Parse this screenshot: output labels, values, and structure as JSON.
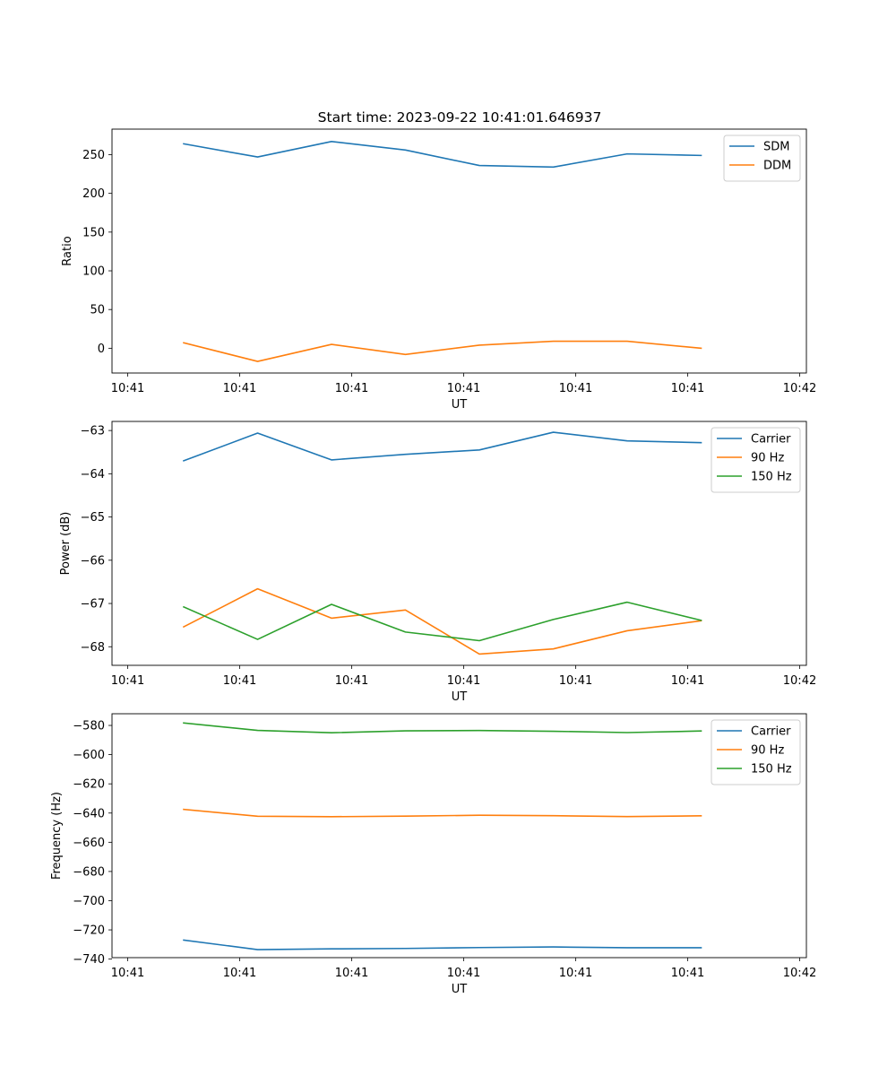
{
  "figure_title": "Start time: 2023-09-22 10:41:01.646937",
  "chart_data": [
    {
      "type": "line",
      "xlabel": "UT",
      "ylabel": "Ratio",
      "x_tick_labels": [
        "10:41",
        "10:41",
        "10:41",
        "10:41",
        "10:41",
        "10:41",
        "10:42"
      ],
      "yticks": [
        0,
        50,
        100,
        150,
        200,
        250
      ],
      "ylim": [
        -32,
        283
      ],
      "x": [
        0.5,
        1.16,
        1.82,
        2.48,
        3.14,
        3.8,
        4.46,
        5.12
      ],
      "xlim": [
        -0.14,
        6.06
      ],
      "xticks": [
        0,
        1,
        2,
        3,
        4,
        5,
        6
      ],
      "legend_position": "top-right",
      "series": [
        {
          "name": "SDM",
          "color": "#1f77b4",
          "values": [
            264,
            247,
            267,
            256,
            236,
            234,
            251,
            249
          ]
        },
        {
          "name": "DDM",
          "color": "#ff7f0e",
          "values": [
            7,
            -17,
            5,
            -8,
            4,
            9,
            9,
            0
          ]
        }
      ]
    },
    {
      "type": "line",
      "xlabel": "UT",
      "ylabel": "Power (dB)",
      "x_tick_labels": [
        "10:41",
        "10:41",
        "10:41",
        "10:41",
        "10:41",
        "10:41",
        "10:42"
      ],
      "yticks": [
        -68,
        -67,
        -66,
        -65,
        -64,
        -63
      ],
      "ylim": [
        -68.43,
        -62.79
      ],
      "x": [
        0.5,
        1.16,
        1.82,
        2.48,
        3.14,
        3.8,
        4.46,
        5.12
      ],
      "xlim": [
        -0.14,
        6.06
      ],
      "xticks": [
        0,
        1,
        2,
        3,
        4,
        5,
        6
      ],
      "legend_position": "top-right",
      "series": [
        {
          "name": "Carrier",
          "color": "#1f77b4",
          "values": [
            -63.7,
            -63.06,
            -63.68,
            -63.55,
            -63.45,
            -63.04,
            -63.24,
            -63.28
          ]
        },
        {
          "name": "90 Hz",
          "color": "#ff7f0e",
          "values": [
            -67.54,
            -66.66,
            -67.34,
            -67.15,
            -68.17,
            -68.05,
            -67.63,
            -67.4
          ]
        },
        {
          "name": "150 Hz",
          "color": "#2ca02c",
          "values": [
            -67.08,
            -67.83,
            -67.02,
            -67.66,
            -67.86,
            -67.37,
            -66.97,
            -67.39
          ]
        }
      ]
    },
    {
      "type": "line",
      "xlabel": "UT",
      "ylabel": "Frequency (Hz)",
      "x_tick_labels": [
        "10:41",
        "10:41",
        "10:41",
        "10:41",
        "10:41",
        "10:41",
        "10:42"
      ],
      "yticks": [
        -740,
        -720,
        -700,
        -680,
        -660,
        -640,
        -620,
        -600,
        -580
      ],
      "ylim": [
        -739,
        -572
      ],
      "x": [
        0.5,
        1.16,
        1.82,
        2.48,
        3.14,
        3.8,
        4.46,
        5.12
      ],
      "xlim": [
        -0.14,
        6.06
      ],
      "xticks": [
        0,
        1,
        2,
        3,
        4,
        5,
        6
      ],
      "legend_position": "top-right",
      "series": [
        {
          "name": "Carrier",
          "color": "#1f77b4",
          "values": [
            -727,
            -733.5,
            -733,
            -732.7,
            -732.1,
            -731.7,
            -732.2,
            -732.2
          ]
        },
        {
          "name": "90 Hz",
          "color": "#ff7f0e",
          "values": [
            -637.5,
            -642.2,
            -642.5,
            -642.1,
            -641.5,
            -641.8,
            -642.4,
            -641.9
          ]
        },
        {
          "name": "150 Hz",
          "color": "#2ca02c",
          "values": [
            -578.3,
            -583.4,
            -585,
            -583.7,
            -583.5,
            -584,
            -584.9,
            -583.8
          ]
        }
      ]
    }
  ]
}
